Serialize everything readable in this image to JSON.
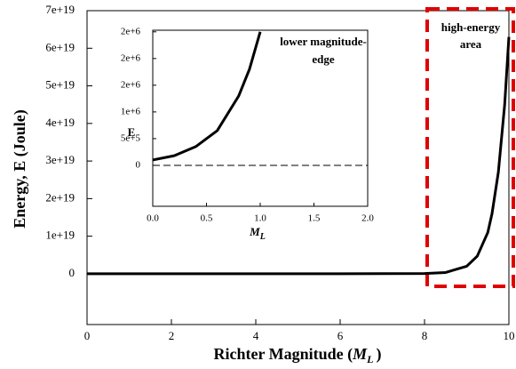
{
  "chart_data": [
    {
      "type": "line",
      "x_label": {
        "text": "Richter Magnitude (",
        "var": "M",
        "sub": "L",
        "close": ")"
      },
      "y_label": "Energy, E (Joule)",
      "annotation": [
        "high-energy",
        "area"
      ],
      "x": [
        0,
        2,
        4,
        6,
        8,
        8.5,
        9,
        9.25,
        9.5,
        9.6,
        9.75,
        9.9,
        10
      ],
      "series": [
        {
          "name": "E",
          "color": "#000000",
          "values": [
            63000.0,
            63000000.0,
            63000000000.0,
            63000000000000.0,
            6.3e+16,
            3.5e+17,
            2e+18,
            4.7e+18,
            1.1e+19,
            1.6e+19,
            2.7e+19,
            4.5e+19,
            6.3e+19
          ]
        }
      ],
      "xlim": [
        0,
        10
      ],
      "xticks": [
        0,
        2,
        4,
        6,
        8,
        10
      ],
      "ylim": [
        -1.35e+19,
        7e+19
      ],
      "yticks": [
        0,
        {
          "value": 1e+19,
          "label": "1e+19"
        },
        {
          "value": 2e+19,
          "label": "2e+19"
        },
        {
          "value": 3e+19,
          "label": "3e+19"
        },
        {
          "value": 4e+19,
          "label": "4e+19"
        },
        {
          "value": 5e+19,
          "label": "5e+19"
        },
        {
          "value": 6e+19,
          "label": "6e+19"
        },
        {
          "value": 7e+19,
          "label": "7e+19"
        }
      ]
    },
    {
      "type": "line",
      "x_label": {
        "var": "M",
        "sub": "L"
      },
      "y_label": "E",
      "annotation": [
        "lower magnitude-",
        "edge"
      ],
      "x": [
        0,
        0.2,
        0.4,
        0.6,
        0.8,
        0.9,
        1.0
      ],
      "series": [
        {
          "name": "E",
          "color": "#000000",
          "values": [
            100000.0,
            180000.0,
            350000.0,
            650000.0,
            1300000.0,
            1800000.0,
            2500000.0
          ]
        }
      ],
      "xlim": [
        0,
        2
      ],
      "xticks": [
        {
          "value": 0,
          "label": "0.0"
        },
        {
          "value": 0.5,
          "label": "0.5"
        },
        {
          "value": 1,
          "label": "1.0"
        },
        {
          "value": 1.5,
          "label": "1.5"
        },
        {
          "value": 2,
          "label": "2.0"
        }
      ],
      "ylim": [
        -767000.0,
        2530000.0
      ],
      "yticks": [
        0,
        {
          "value": 500000.0,
          "label": "5e+5"
        },
        {
          "value": 1000000.0,
          "label": "1e+6"
        },
        {
          "value": 1500000.0,
          "label": "2e+6"
        },
        {
          "value": 2000000.0,
          "label": "2e+6"
        },
        {
          "value": 2500000.0,
          "label": "2e+6"
        }
      ]
    }
  ]
}
